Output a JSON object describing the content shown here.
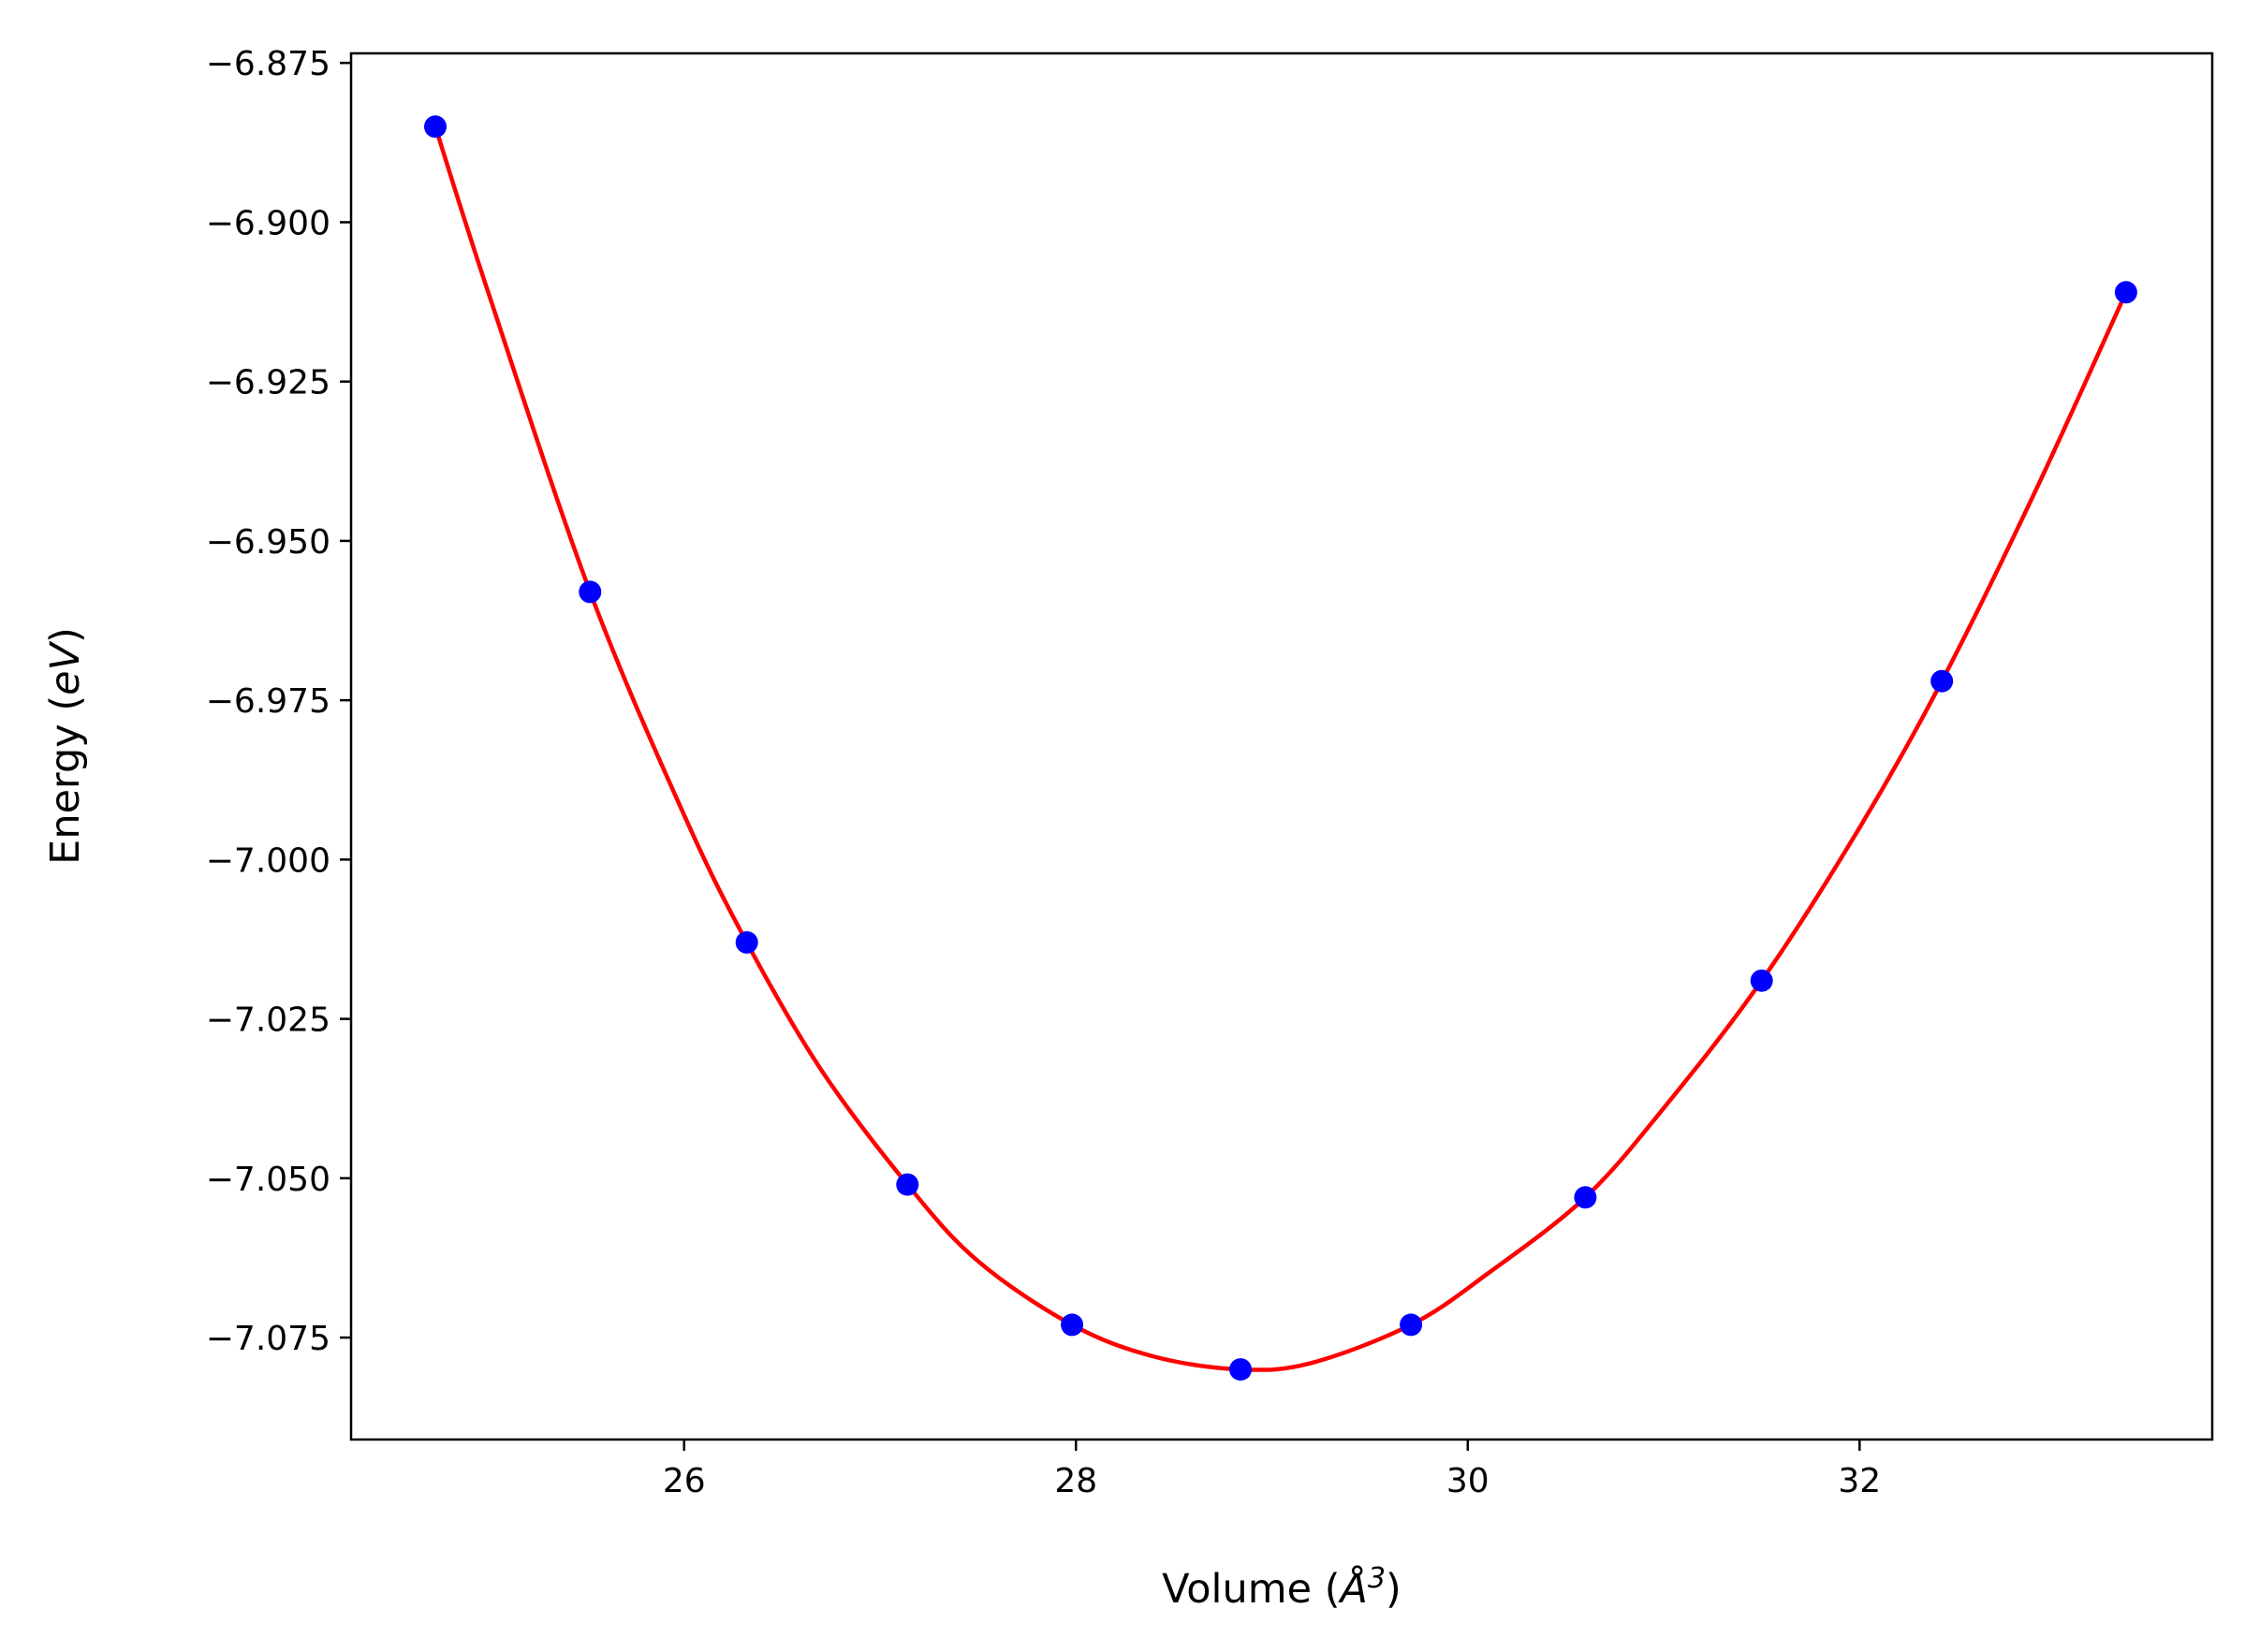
{
  "chart_data": {
    "type": "scatter",
    "xlabel": {
      "prefix": "Volume (",
      "symbol": "Å",
      "superscript": "3",
      "suffix": ")"
    },
    "ylabel": {
      "prefix": "Energy (",
      "unit": "eV",
      "suffix": ")"
    },
    "xlim": [
      24.3,
      33.8
    ],
    "ylim": [
      -7.091,
      -6.8735
    ],
    "xticks": [
      26,
      28,
      30,
      32
    ],
    "xtick_labels": [
      "26",
      "28",
      "30",
      "32"
    ],
    "yticks": [
      -6.875,
      -6.9,
      -6.925,
      -6.95,
      -6.975,
      -7.0,
      -7.025,
      -7.05,
      -7.075
    ],
    "ytick_labels": [
      "−6.875",
      "−6.900",
      "−6.925",
      "−6.950",
      "−6.975",
      "−7.000",
      "−7.025",
      "−7.050",
      "−7.075"
    ],
    "grid": false,
    "series": [
      {
        "kind": "points",
        "color": "#0000ff",
        "x": [
          24.73,
          25.52,
          26.32,
          27.14,
          27.98,
          28.84,
          29.71,
          30.6,
          31.5,
          32.42,
          33.36
        ],
        "y": [
          -6.885,
          -6.958,
          -7.013,
          -7.051,
          -7.073,
          -7.08,
          -7.073,
          -7.053,
          -7.019,
          -6.972,
          -6.911
        ]
      },
      {
        "kind": "fit",
        "color": "#ff0000",
        "x": [
          24.73,
          25.0,
          25.52,
          26.0,
          26.32,
          26.7,
          27.14,
          27.5,
          27.98,
          28.4,
          28.84,
          29.2,
          29.71,
          30.1,
          30.6,
          31.0,
          31.5,
          32.0,
          32.42,
          32.9,
          33.36
        ],
        "y": [
          -6.885,
          -6.911,
          -6.958,
          -6.993,
          -7.013,
          -7.033,
          -7.051,
          -7.063,
          -7.073,
          -7.078,
          -7.08,
          -7.079,
          -7.073,
          -7.065,
          -7.053,
          -7.039,
          -7.019,
          -6.995,
          -6.972,
          -6.942,
          -6.911
        ]
      }
    ]
  }
}
